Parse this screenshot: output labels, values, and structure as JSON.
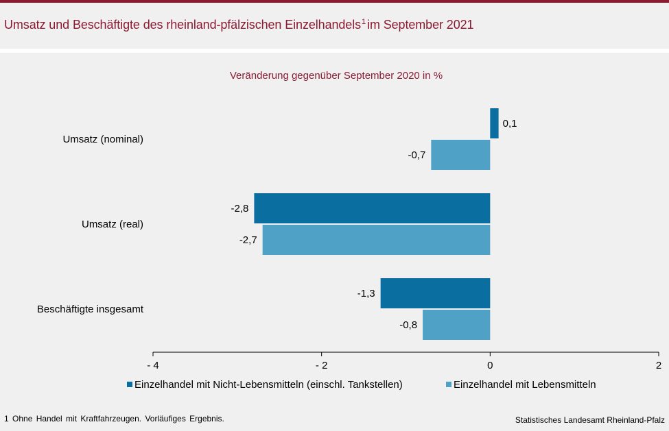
{
  "header": {
    "title": "Umsatz und Beschäftigte des rheinland-pfälzischen Einzelhandels",
    "title_sup": "1",
    "title_suffix": "im September 2021"
  },
  "chart_data": {
    "type": "bar",
    "orientation": "horizontal",
    "subtitle": "Veränderung gegenüber September 2020 in %",
    "categories": [
      "Umsatz (nominal)",
      "Umsatz (real)",
      "Beschäftigte insgesamt"
    ],
    "series": [
      {
        "name": "Einzelhandel mit Nicht-Lebensmitteln (einschl. Tankstellen)",
        "color": "#0a6fa0",
        "values": [
          0.1,
          -2.8,
          -1.3
        ],
        "labels": [
          "0,1",
          "-2,8",
          "-1,3"
        ]
      },
      {
        "name": "Einzelhandel mit Lebensmitteln",
        "color": "#4fa1c5",
        "values": [
          -0.7,
          -2.7,
          -0.8
        ],
        "labels": [
          "-0,7",
          "-2,7",
          "-0,8"
        ]
      }
    ],
    "xlim": [
      -4,
      2
    ],
    "xticks": [
      -4,
      -2,
      0,
      2
    ],
    "xtick_labels": [
      "- 4",
      "- 2",
      "0",
      "2"
    ],
    "grid": false,
    "legend_position": "bottom"
  },
  "footer": {
    "footnote": "1 Ohne Handel mit Kraftfahrzeugen. Vorläufiges Ergebnis.",
    "source": "Statistisches Landesamt Rheinland-Pfalz"
  }
}
